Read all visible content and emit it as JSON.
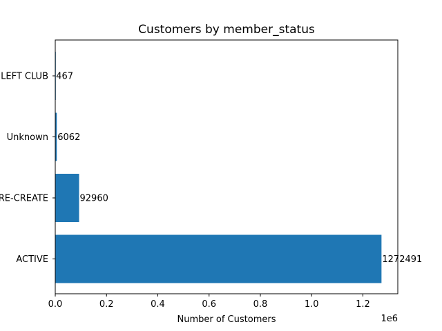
{
  "chart_data": {
    "type": "bar",
    "orientation": "horizontal",
    "title": "Customers by member_status",
    "xlabel": "Number of Customers",
    "ylabel": "",
    "x_offset_label": "1e6",
    "categories": [
      "ACTIVE",
      "PRE-CREATE",
      "Unknown",
      "LEFT CLUB"
    ],
    "values": [
      1272491,
      92960,
      6062,
      467
    ],
    "data_labels": [
      "1272491",
      "92960",
      "6062",
      "467"
    ],
    "xlim": [
      0,
      1336116
    ],
    "x_ticks": [
      0,
      200000,
      400000,
      600000,
      800000,
      1000000,
      1200000
    ],
    "x_tick_labels": [
      "0.0",
      "0.2",
      "0.4",
      "0.6",
      "0.8",
      "1.0",
      "1.2"
    ],
    "bar_color": "#1f77b4",
    "grid": false,
    "legend": "none"
  }
}
